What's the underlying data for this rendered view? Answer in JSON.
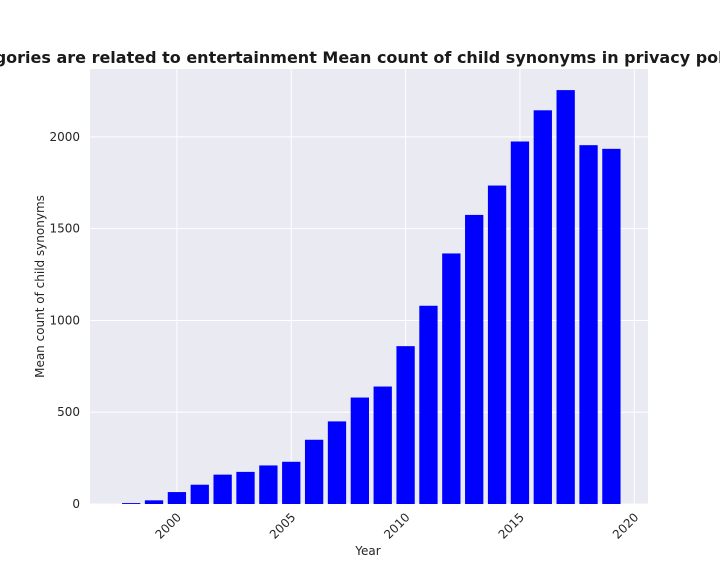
{
  "chart_data": {
    "type": "bar",
    "title": "en categories are related to entertainment Mean count of child synonyms in privacy policies by",
    "xlabel": "Year",
    "ylabel": "Mean count of child synonyms",
    "x": [
      1998,
      1999,
      2000,
      2001,
      2002,
      2003,
      2004,
      2005,
      2006,
      2007,
      2008,
      2009,
      2010,
      2011,
      2012,
      2013,
      2014,
      2015,
      2016,
      2017,
      2018,
      2019
    ],
    "values": [
      5,
      20,
      65,
      105,
      160,
      175,
      210,
      230,
      350,
      450,
      580,
      640,
      860,
      1080,
      1365,
      1575,
      1735,
      1975,
      2145,
      2255,
      1955,
      1935
    ],
    "xlim": [
      1996.2,
      2020.6
    ],
    "ylim": [
      0,
      2370
    ],
    "xticks": [
      2000,
      2005,
      2010,
      2015,
      2020
    ],
    "yticks": [
      0,
      500,
      1000,
      1500,
      2000
    ],
    "xtick_rotation": 45,
    "grid": true,
    "colors": {
      "bar": "#0000ff",
      "plot_background": "#eaeaf2",
      "grid": "#ffffff"
    }
  }
}
